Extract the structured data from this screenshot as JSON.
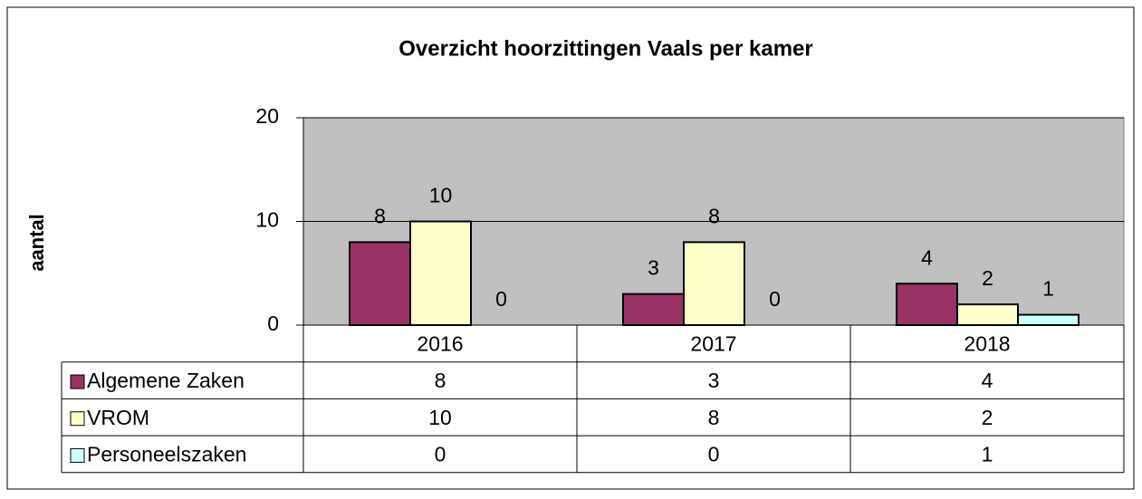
{
  "chart_data": {
    "type": "bar",
    "title": "Overzicht hoorzittingen Vaals per kamer",
    "y_label": "aantal",
    "categories": [
      "2016",
      "2017",
      "2018"
    ],
    "series": [
      {
        "name": "Algemene Zaken",
        "color": "#993366",
        "values": [
          8,
          3,
          4
        ]
      },
      {
        "name": "VROM",
        "color": "#ffffcc",
        "values": [
          10,
          8,
          2
        ]
      },
      {
        "name": "Personeelszaken",
        "color": "#ccffff",
        "values": [
          0,
          0,
          1
        ]
      }
    ],
    "ylim": [
      0,
      20
    ],
    "yticks": [
      0,
      10,
      20
    ],
    "grid": true,
    "plot_background": "#c0c0c0",
    "data_table": true
  }
}
